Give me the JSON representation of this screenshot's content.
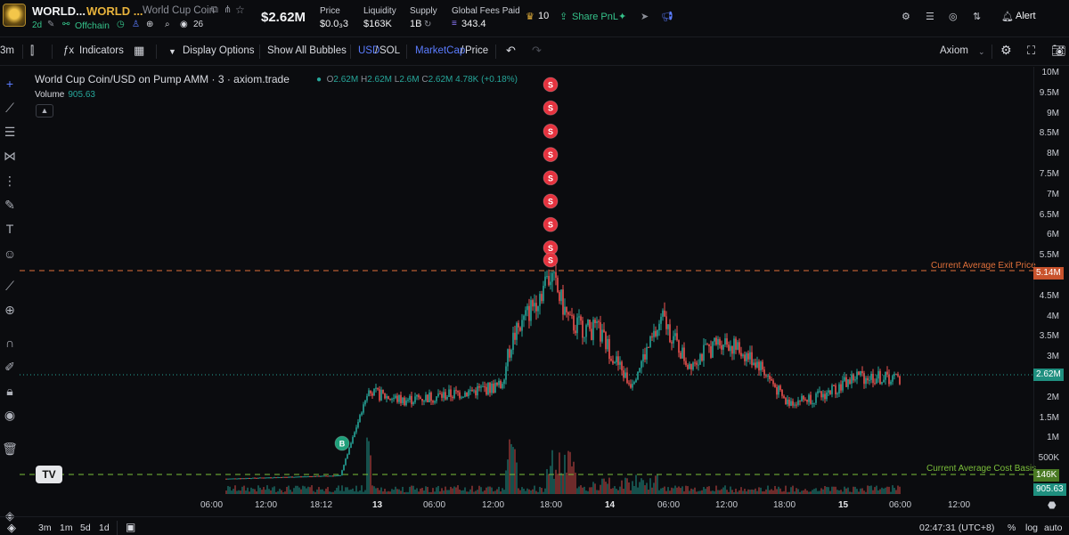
{
  "header": {
    "token_name": "WORLD...",
    "token_ticker": "WORLD ...",
    "token_full_name": "World Cup Coin",
    "age": "2d",
    "offchain": "Offchain",
    "watchers": "26",
    "market_cap": "$2.62M",
    "stats": [
      {
        "label": "Price",
        "value": "$0.0₃3"
      },
      {
        "label": "Liquidity",
        "value": "$163K"
      },
      {
        "label": "Supply",
        "value": "1B"
      },
      {
        "label": "Global Fees Paid",
        "value": "343.4"
      }
    ],
    "holders_badge": "10",
    "share_pnl": "Share PnL",
    "alert": "Alert"
  },
  "toolbar": {
    "interval": "3m",
    "indicators": "Indicators",
    "display_options": "Display Options",
    "show_all_bubbles": "Show All Bubbles",
    "currency_a": "USD",
    "currency_b": "SOL",
    "mode_a": "MarketCap",
    "mode_b": "Price",
    "layout": "Axiom"
  },
  "legend": {
    "title": "World Cup Coin/USD on Pump AMM · 3 · axiom.trade",
    "o_label": "O",
    "o": "2.62M",
    "h_label": "H",
    "h": "2.62M",
    "l_label": "L",
    "l": "2.6M",
    "c_label": "C",
    "c": "2.62M",
    "change": "4.78K (+0.18%)",
    "volume_label": "Volume",
    "volume_value": "905.63"
  },
  "lines": {
    "exit_label": "Current Average Exit Price",
    "exit_value": "5.14M",
    "cost_label": "Current Average Cost Basis",
    "cost_value": "146K",
    "current_value": "2.62M",
    "volume_badge": "905.63"
  },
  "chart_data": {
    "type": "candlestick",
    "y_unit": "USD market cap",
    "ylim": [
      0,
      10200000
    ],
    "y_ticks": [
      "10M",
      "9.5M",
      "9M",
      "8.5M",
      "8M",
      "7.5M",
      "7M",
      "6.5M",
      "6M",
      "5.5M",
      "5M",
      "4.5M",
      "4M",
      "3.5M",
      "3M",
      "2.5M",
      "2M",
      "1.5M",
      "1M",
      "500K"
    ],
    "x_ticks": [
      "06:00",
      "12:00",
      "18:12",
      "13",
      "06:00",
      "12:00",
      "18:00",
      "14",
      "06:00",
      "12:00",
      "18:00",
      "15",
      "06:00",
      "12:00"
    ],
    "close_series_approx": [
      [
        "start",
        160000
      ],
      [
        "18:12",
        240000
      ],
      [
        "pump",
        2300000
      ],
      [
        "13",
        2100000
      ],
      [
        "06:00",
        2250000
      ],
      [
        "10:00",
        2450000
      ],
      [
        "11:00",
        3600000
      ],
      [
        "14:30",
        5200000
      ],
      [
        "15:00",
        4000000
      ],
      [
        "18:00",
        3800000
      ],
      [
        "14",
        2500000
      ],
      [
        "04:00",
        4100000
      ],
      [
        "06:00",
        3000000
      ],
      [
        "09:00",
        3600000
      ],
      [
        "12:00",
        3000000
      ],
      [
        "16:00",
        2050000
      ],
      [
        "20:00",
        2200000
      ],
      [
        "15 00:00",
        2700000
      ],
      [
        "02:47",
        2620000
      ]
    ],
    "markers": [
      {
        "type": "B",
        "count": 1
      },
      {
        "type": "S",
        "count": 9
      }
    ],
    "reference_lines": [
      {
        "label": "Current Average Exit Price",
        "value": 5140000,
        "color": "#e0703a"
      },
      {
        "label": "Current Average Cost Basis",
        "value": 146000,
        "color": "#7bbf3a"
      }
    ],
    "up_color": "#26a69a",
    "down_color": "#ef5350",
    "grid": false
  },
  "marker_labels": {
    "buy": "B",
    "sell": "S"
  },
  "bottombar": {
    "ranges": [
      "3m",
      "1m",
      "5d",
      "1d"
    ],
    "clock": "02:47:31 (UTC+8)",
    "percent": "%",
    "log": "log",
    "auto": "auto"
  },
  "colors": {
    "accent_green": "#35c28a",
    "accent_gold": "#e8b33c",
    "link_blue": "#5b7cff"
  }
}
